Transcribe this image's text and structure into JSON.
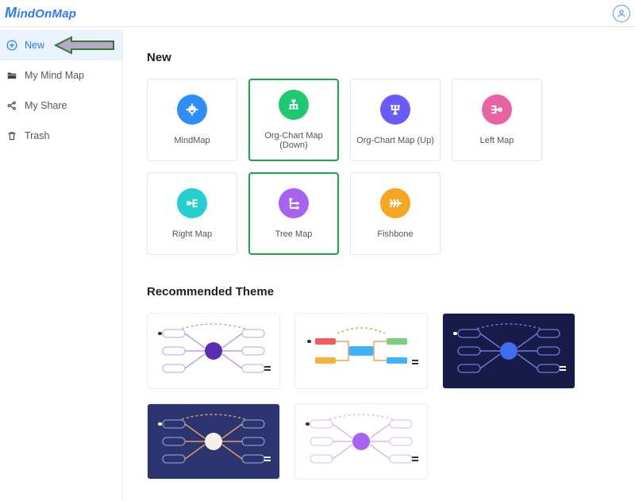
{
  "app": {
    "logo": "MindOnMap"
  },
  "sidebar": {
    "items": [
      {
        "label": "New",
        "active": true
      },
      {
        "label": "My Mind Map",
        "active": false
      },
      {
        "label": "My Share",
        "active": false
      },
      {
        "label": "Trash",
        "active": false
      }
    ]
  },
  "sections": {
    "new_title": "New",
    "recommended_title": "Recommended Theme"
  },
  "templates": [
    {
      "label": "MindMap",
      "color": "#2e8eff",
      "highlight": false,
      "kind": "mindmap"
    },
    {
      "label": "Org-Chart Map (Down)",
      "color": "#1fc972",
      "highlight": true,
      "kind": "org-down"
    },
    {
      "label": "Org-Chart Map (Up)",
      "color": "#6a5bff",
      "highlight": false,
      "kind": "org-up"
    },
    {
      "label": "Left Map",
      "color": "#e863a4",
      "highlight": false,
      "kind": "left"
    },
    {
      "label": "Right Map",
      "color": "#25cfcf",
      "highlight": false,
      "kind": "right"
    },
    {
      "label": "Tree Map",
      "color": "#a862f2",
      "highlight": true,
      "kind": "tree"
    },
    {
      "label": "Fishbone",
      "color": "#f6a623",
      "highlight": false,
      "kind": "fishbone"
    }
  ],
  "themes": [
    {
      "bg": "#ffffff",
      "center": "#5b2db3",
      "node": "#ffffff",
      "node_stroke": "#c9b8ea",
      "line": "#b89ee3",
      "dark": false,
      "style": "bubble"
    },
    {
      "bg": "#ffffff",
      "center": "#3fb2ff",
      "left1": "#f25c5c",
      "left2": "#f2b33f",
      "right1": "#7bd17b",
      "right2": "#3fb2ff",
      "line": "#e9a35a",
      "dark": false,
      "style": "blocks"
    },
    {
      "bg": "#181b47",
      "center": "#3e6df2",
      "node": "#181b47",
      "node_stroke": "#6a7bd6",
      "line": "#6a7bd6",
      "dark": true,
      "style": "bubble"
    },
    {
      "bg": "#2d3570",
      "center": "#f5f0e6",
      "node": "#2d3570",
      "node_stroke": "#8b93c9",
      "line": "#e0a25a",
      "dark": true,
      "style": "bubble"
    },
    {
      "bg": "#ffffff",
      "center": "#a862f2",
      "node": "#ffffff",
      "node_stroke": "#e0c8fa",
      "line": "#d9b8f6",
      "dark": false,
      "style": "bubble"
    }
  ],
  "colors": {
    "accent": "#2e7bff",
    "highlight_border": "#1aa94a",
    "arrow_fill": "#b9a7c9",
    "arrow_stroke": "#3a7a2e"
  }
}
